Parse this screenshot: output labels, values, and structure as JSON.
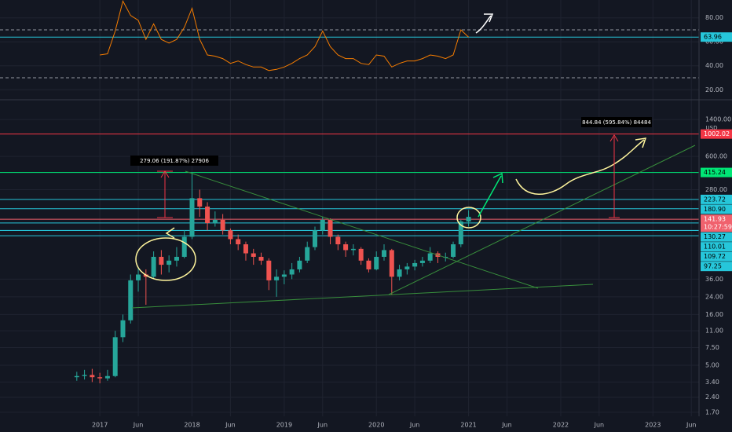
{
  "chart_data": [
    {
      "type": "line",
      "x": [
        "2017-01",
        "2017-02",
        "2017-03",
        "2017-04",
        "2017-05",
        "2017-06",
        "2017-07",
        "2017-08",
        "2017-09",
        "2017-10",
        "2017-11",
        "2017-12",
        "2018-01",
        "2018-02",
        "2018-03",
        "2018-04",
        "2018-05",
        "2018-06",
        "2018-07",
        "2018-08",
        "2018-09",
        "2018-10",
        "2018-11",
        "2018-12",
        "2019-01",
        "2019-02",
        "2019-03",
        "2019-04",
        "2019-05",
        "2019-06",
        "2019-07",
        "2019-08",
        "2019-09",
        "2019-10",
        "2019-11",
        "2019-12",
        "2020-01",
        "2020-02",
        "2020-03",
        "2020-04",
        "2020-05",
        "2020-06",
        "2020-07",
        "2020-08",
        "2020-09",
        "2020-10",
        "2020-11",
        "2020-12",
        "2021-01"
      ],
      "values": [
        49,
        50,
        69,
        94,
        82,
        78,
        62,
        75,
        62,
        59,
        62,
        72,
        88,
        62,
        49,
        48,
        46,
        42,
        44,
        41,
        39,
        39,
        36,
        37,
        39,
        42,
        46,
        49,
        56,
        69,
        56,
        49,
        46,
        46,
        42,
        41,
        49,
        48,
        39,
        42,
        44,
        44,
        46,
        49,
        48,
        46,
        49,
        70,
        63.96
      ],
      "color": "#f57c00",
      "ylim": [
        12.3,
        94.9
      ],
      "yticks": [
        {
          "value": 80,
          "label": "80.00"
        },
        {
          "value": 60,
          "label": "60.00"
        },
        {
          "value": 40,
          "label": "40.00"
        },
        {
          "value": 20,
          "label": "20.00"
        }
      ],
      "dashed_levels": [
        70,
        30
      ],
      "current": {
        "value": 63.96,
        "label": "63.96",
        "color": "#26c6da"
      }
    },
    {
      "type": "candlestick",
      "x": [
        "2016-10",
        "2016-11",
        "2016-12",
        "2017-01",
        "2017-02",
        "2017-03",
        "2017-04",
        "2017-05",
        "2017-06",
        "2017-07",
        "2017-08",
        "2017-09",
        "2017-10",
        "2017-11",
        "2017-12",
        "2018-01",
        "2018-02",
        "2018-03",
        "2018-04",
        "2018-05",
        "2018-06",
        "2018-07",
        "2018-08",
        "2018-09",
        "2018-10",
        "2018-11",
        "2018-12",
        "2019-01",
        "2019-02",
        "2019-03",
        "2019-04",
        "2019-05",
        "2019-06",
        "2019-07",
        "2019-08",
        "2019-09",
        "2019-10",
        "2019-11",
        "2019-12",
        "2020-01",
        "2020-02",
        "2020-03",
        "2020-04",
        "2020-05",
        "2020-06",
        "2020-07",
        "2020-08",
        "2020-09",
        "2020-10",
        "2020-11",
        "2020-12",
        "2021-01"
      ],
      "open": [
        3.8,
        3.9,
        4.0,
        3.8,
        3.7,
        3.9,
        9.5,
        14,
        35,
        40,
        38,
        60,
        50,
        55,
        60,
        95,
        230,
        190,
        130,
        140,
        110,
        90,
        80,
        65,
        60,
        55,
        35,
        38,
        40,
        45,
        55,
        75,
        110,
        140,
        95,
        80,
        70,
        72,
        55,
        45,
        60,
        70,
        38,
        45,
        48,
        52,
        55,
        65,
        60,
        60,
        80,
        135
      ],
      "high": [
        4.3,
        4.5,
        4.6,
        4.2,
        4.5,
        11,
        16,
        40,
        48,
        45,
        68,
        70,
        62,
        75,
        110,
        415,
        280,
        210,
        170,
        160,
        115,
        100,
        85,
        72,
        66,
        58,
        45,
        44,
        52,
        60,
        85,
        120,
        150,
        145,
        100,
        85,
        80,
        75,
        58,
        68,
        80,
        72,
        50,
        52,
        56,
        60,
        75,
        68,
        66,
        85,
        140,
        175
      ],
      "low": [
        3.5,
        3.6,
        3.4,
        3.3,
        3.5,
        3.8,
        8.5,
        13,
        27,
        20,
        36,
        40,
        42,
        48,
        58,
        90,
        150,
        110,
        120,
        100,
        80,
        70,
        55,
        50,
        50,
        28,
        24,
        32,
        36,
        42,
        52,
        70,
        100,
        80,
        70,
        60,
        62,
        50,
        42,
        44,
        55,
        25,
        35,
        40,
        44,
        48,
        52,
        52,
        54,
        58,
        75,
        120
      ],
      "close": [
        3.9,
        4.0,
        3.8,
        3.7,
        3.9,
        9.5,
        14,
        35,
        40,
        38,
        60,
        50,
        55,
        60,
        95,
        230,
        190,
        130,
        140,
        110,
        90,
        80,
        65,
        60,
        55,
        35,
        38,
        40,
        45,
        55,
        75,
        110,
        140,
        95,
        80,
        70,
        72,
        55,
        45,
        60,
        70,
        38,
        45,
        48,
        52,
        55,
        65,
        60,
        60,
        80,
        135,
        150
      ],
      "up_color": "#26a69a",
      "down_color": "#ef5350",
      "log_scale": true,
      "xlim": [
        "2015-12",
        "2023-07"
      ],
      "xticks": [
        {
          "value": "2017-01",
          "label": "2017"
        },
        {
          "value": "2017-06",
          "label": "Jun"
        },
        {
          "value": "2018-01",
          "label": "2018"
        },
        {
          "value": "2018-06",
          "label": "Jun"
        },
        {
          "value": "2019-01",
          "label": "2019"
        },
        {
          "value": "2019-06",
          "label": "Jun"
        },
        {
          "value": "2020-01",
          "label": "2020"
        },
        {
          "value": "2020-06",
          "label": "Jun"
        },
        {
          "value": "2021-01",
          "label": "2021"
        },
        {
          "value": "2021-06",
          "label": "Jun"
        },
        {
          "value": "2022-01",
          "label": "2022"
        },
        {
          "value": "2022-06",
          "label": "Jun"
        },
        {
          "value": "2023-01",
          "label": "2023"
        },
        {
          "value": "2023-06",
          "label": "Jun"
        }
      ],
      "ylim": [
        1.55,
        2160
      ],
      "yticks": [
        {
          "value": 1.7,
          "label": "1.70"
        },
        {
          "value": 2.4,
          "label": "2.40"
        },
        {
          "value": 3.4,
          "label": "3.40"
        },
        {
          "value": 5,
          "label": "5.00"
        },
        {
          "value": 7.5,
          "label": "7.50"
        },
        {
          "value": 11,
          "label": "11.00"
        },
        {
          "value": 16,
          "label": "16.00"
        },
        {
          "value": 24,
          "label": "24.00"
        },
        {
          "value": 36,
          "label": "36.00"
        },
        {
          "value": 280,
          "label": "280.00"
        },
        {
          "value": 600,
          "label": "600.00"
        },
        {
          "value": 1400,
          "label": "1400.00"
        }
      ],
      "unit": "USD",
      "levels": [
        {
          "value": 1002.02,
          "label": "1002.02",
          "color": "#f23645",
          "text_color": "#ffffff"
        },
        {
          "value": 415.24,
          "label": "415.24",
          "color": "#00e676",
          "text_color": "#000000"
        },
        {
          "value": 223.72,
          "label": "223.72",
          "color": "#26c6da",
          "text_color": "#000000"
        },
        {
          "value": 180.9,
          "label": "180.90",
          "color": "#26c6da",
          "text_color": "#000000"
        },
        {
          "value": 141.93,
          "label": "141.93",
          "color": "#f0616d",
          "text_color": "#ffffff",
          "countdown": "10:27:59"
        },
        {
          "value": 130.27,
          "label": "130.27",
          "color": "#26c6da",
          "text_color": "#000000"
        },
        {
          "value": 110.01,
          "label": "110.01",
          "color": "#26c6da",
          "text_color": "#000000"
        },
        {
          "value": 109.72,
          "label": "109.72",
          "color": "#26c6da",
          "text_color": "#000000"
        },
        {
          "value": 97.25,
          "label": "97.25",
          "color": "#26c6da",
          "text_color": "#000000"
        }
      ],
      "annotations": [
        "279.06 (191.87%) 27906",
        "844.84 (595.84%) 84484"
      ]
    }
  ]
}
